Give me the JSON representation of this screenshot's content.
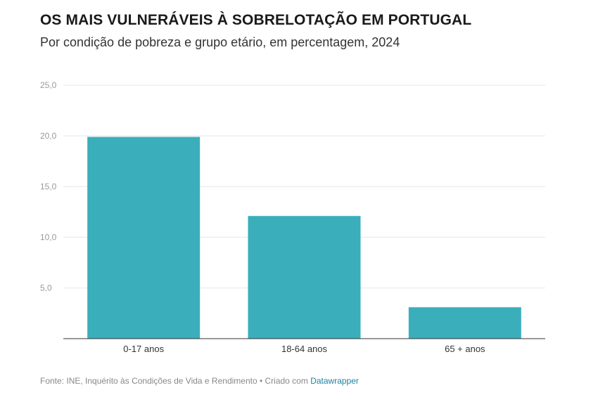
{
  "chart_data": {
    "type": "bar",
    "title": "OS MAIS VULNERÁVEIS À SOBRELOTAÇÃO EM PORTUGAL",
    "subtitle": "Por condição de pobreza e grupo etário, em percentagem, 2024",
    "categories": [
      "0-17 anos",
      "18-64 anos",
      "65 + anos"
    ],
    "values": [
      19.9,
      12.1,
      3.1
    ],
    "ylim": [
      0,
      25
    ],
    "yticks": [
      "5,0",
      "10,0",
      "15,0",
      "20,0",
      "25,0"
    ],
    "ytick_values": [
      5,
      10,
      15,
      20,
      25
    ],
    "bar_color": "#3aafbb",
    "grid": true
  },
  "footer": {
    "source_text": "Fonte: INE, Inquérito às Condições de Vida e Rendimento • Criado com ",
    "link_text": "Datawrapper",
    "link_color": "#1d81a2"
  }
}
